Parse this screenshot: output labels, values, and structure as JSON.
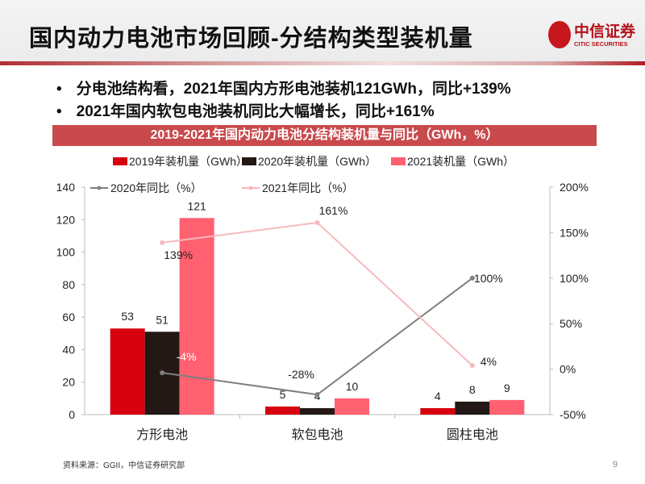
{
  "header": {
    "title": "国内动力电池市场回顾-分结构类型装机量",
    "logo_cn": "中信证券",
    "logo_en": "CITIC SECURITIES"
  },
  "bullets": [
    "分电池结构看，2021年国内方形电池装机121GWh，同比+139%",
    "2021年国内软包电池装机同比大幅增长，同比+161%"
  ],
  "chart_data": {
    "type": "bar+line",
    "title": "2019-2021年国内动力电池分结构装机量与同比（GWh，%）",
    "categories": [
      "方形电池",
      "软包电池",
      "圆柱电池"
    ],
    "bar_series": [
      {
        "name": "2019年装机量（GWh）",
        "values": [
          53,
          5,
          4
        ],
        "color": "#d7000f"
      },
      {
        "name": "2020年装机量（GWh）",
        "values": [
          51,
          4,
          8
        ],
        "color": "#231815"
      },
      {
        "name": "2021装机量（GWh）",
        "values": [
          121,
          10,
          9
        ],
        "color": "#ff6170"
      }
    ],
    "line_series": [
      {
        "name": "2020年同比（%）",
        "values": [
          -4,
          -28,
          100
        ],
        "labels": [
          "-4%",
          "-28%",
          "100%"
        ],
        "color": "#7f7f7f"
      },
      {
        "name": "2021年同比（%）",
        "values": [
          139,
          161,
          4
        ],
        "labels": [
          "139%",
          "161%",
          "4%"
        ],
        "color": "#f7b9bd"
      }
    ],
    "y_left": {
      "min": 0,
      "max": 140,
      "ticks": [
        "0",
        "20",
        "40",
        "60",
        "80",
        "100",
        "120",
        "140"
      ]
    },
    "y_right": {
      "min": -50,
      "max": 200,
      "ticks": [
        "-50%",
        "0%",
        "50%",
        "100%",
        "150%",
        "200%"
      ]
    },
    "legend": "top"
  },
  "footer": {
    "source": "资料来源：GGII，中信证券研究部",
    "page": "9"
  }
}
